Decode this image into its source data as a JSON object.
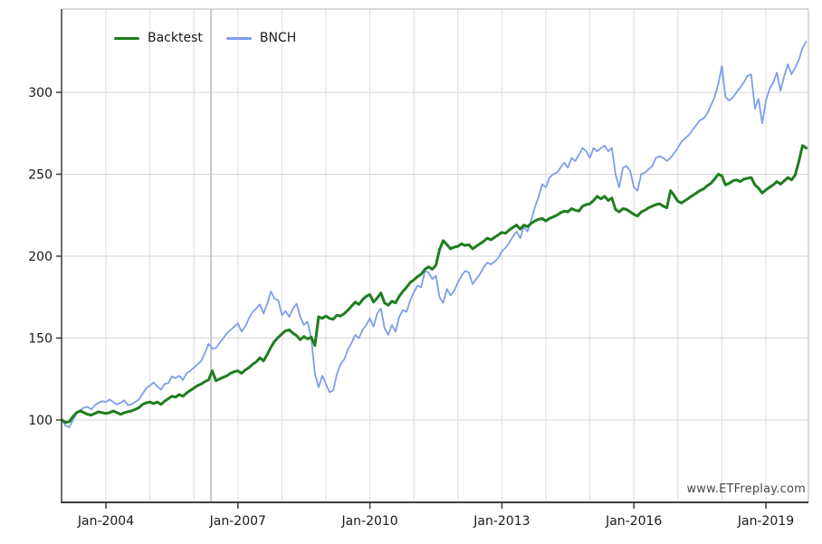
{
  "watermark": "www.ETFreplay.com",
  "legend": {
    "items": [
      {
        "label": "Backtest",
        "color": "#1e7d1e"
      },
      {
        "label": "BNCH",
        "color": "#7d9ee8"
      }
    ]
  },
  "colors": {
    "backtest_line": "#1e7d1e",
    "bnch_line": "#7d9ee8",
    "gridline": "#dcdcdc",
    "extra_gridline": "#c8c8c8",
    "axis": "#3d3d3d",
    "border": "#b4b4b4",
    "tick_text": "#1a1a1a"
  },
  "chart_data": {
    "type": "line",
    "title": "",
    "xlabel": "",
    "ylabel": "",
    "x_interval": "monthly",
    "x_start_year": 2003,
    "x_end_year_fraction": 2019.9167,
    "ylim": [
      50,
      351
    ],
    "y_ticks": [
      100,
      150,
      200,
      250,
      300
    ],
    "x_tick_years": [
      2004,
      2007,
      2010,
      2013,
      2016,
      2019
    ],
    "x_tick_labels": [
      "Jan-2004",
      "Jan-2007",
      "Jan-2010",
      "Jan-2013",
      "Jan-2016",
      "Jan-2019"
    ],
    "x_gridline_years": [
      2004,
      2005,
      2006,
      2007,
      2008,
      2009,
      2010,
      2011,
      2012,
      2013,
      2014,
      2015,
      2016,
      2017,
      2018,
      2019
    ],
    "extra_gridline_year": 2006.39,
    "grid": true,
    "legend_position": "top-left",
    "series": [
      {
        "name": "Backtest",
        "color": "#1e7d1e",
        "width": 3,
        "values": [
          100,
          98.5,
          99,
          102,
          104.5,
          105.5,
          104.5,
          103.5,
          103,
          104,
          105,
          104.5,
          104,
          104.5,
          105.5,
          104.5,
          103.5,
          104.5,
          105,
          105.5,
          106.5,
          107.5,
          109.5,
          110.5,
          111,
          110,
          111,
          109.5,
          111.5,
          113,
          114.5,
          114,
          115.5,
          114.5,
          116.5,
          118,
          119.5,
          121,
          122,
          123.5,
          124.5,
          130,
          124,
          125,
          126,
          127,
          128.5,
          129.5,
          130,
          128.5,
          130.5,
          132,
          134,
          135.5,
          138,
          136,
          140,
          144.5,
          148,
          150.5,
          152.5,
          154.5,
          155,
          153,
          151.5,
          149,
          151,
          149.5,
          150.5,
          145.5,
          163,
          162,
          163.5,
          162,
          161.5,
          164,
          163.5,
          165,
          167,
          169.5,
          172,
          170.5,
          173.5,
          175.5,
          176.5,
          172,
          174.5,
          177.5,
          171.5,
          170,
          172.5,
          171.5,
          175.5,
          178.5,
          181,
          184,
          185.5,
          187.5,
          189,
          192,
          193.5,
          192,
          194.5,
          204,
          209.5,
          207,
          204.5,
          205.5,
          206,
          207.5,
          206.5,
          207,
          204.5,
          206,
          207.5,
          209,
          211,
          210,
          211.5,
          213,
          214.5,
          214,
          216,
          217.5,
          219,
          216.5,
          219,
          218,
          220,
          221.5,
          222.5,
          223,
          221.5,
          223,
          224,
          225,
          226.5,
          227.5,
          227,
          229,
          228,
          227.5,
          230.5,
          231.5,
          232,
          234,
          236.5,
          235,
          236.5,
          234,
          235.5,
          228.5,
          227,
          229,
          228.5,
          227,
          225.5,
          224.5,
          227,
          228,
          229.5,
          230.5,
          231.5,
          232,
          230.5,
          229.5,
          240,
          237,
          233.5,
          232.5,
          234,
          235.5,
          237,
          238.5,
          240,
          241,
          243,
          244.5,
          247,
          250,
          249,
          243.5,
          244.5,
          246,
          246.5,
          245.5,
          247,
          247.5,
          248,
          243.5,
          241.5,
          238.5,
          240.5,
          242,
          243.5,
          245.5,
          244,
          246,
          248,
          246.5,
          249.5,
          258,
          267.5,
          266
        ]
      },
      {
        "name": "BNCH",
        "color": "#7d9ee8",
        "width": 1.8,
        "values": [
          100,
          96.5,
          95.5,
          100,
          104,
          106,
          107.5,
          108,
          106.5,
          109,
          110.5,
          111.5,
          111,
          112.5,
          111,
          109.5,
          110.5,
          112,
          109,
          109.5,
          111,
          112.5,
          116,
          119.5,
          121,
          123,
          120.5,
          118.5,
          122,
          122.5,
          126.5,
          125.5,
          127,
          124.5,
          128.5,
          130,
          132,
          134,
          136,
          141,
          146.5,
          143.5,
          144,
          147,
          150,
          153,
          155,
          157,
          159,
          154,
          157,
          162,
          166,
          168,
          170.5,
          165,
          171,
          178.5,
          174,
          173,
          164,
          166.5,
          163,
          168,
          171,
          163,
          158,
          160,
          150,
          128,
          120,
          127,
          122,
          117,
          118,
          128,
          134,
          137,
          143,
          147,
          152,
          150,
          155,
          158,
          162,
          157,
          165,
          168,
          156,
          152,
          158,
          154,
          163,
          167,
          166,
          173,
          178,
          182,
          181,
          191,
          190,
          186,
          188,
          175,
          171.5,
          180,
          176,
          179,
          184,
          188,
          191,
          190,
          183,
          186,
          189,
          193,
          196,
          195,
          196.5,
          199,
          203,
          205,
          208,
          212,
          215,
          211,
          218,
          215,
          222,
          230,
          236,
          244,
          242,
          248,
          250,
          251,
          254,
          257,
          254,
          260,
          258,
          262,
          266,
          264,
          260,
          266,
          264,
          266,
          267.5,
          264,
          266,
          250,
          242,
          254,
          255,
          252,
          242,
          240,
          250,
          251,
          253,
          255,
          260,
          261,
          260,
          258,
          260,
          263,
          266,
          270,
          272,
          274,
          277,
          280,
          283,
          284,
          287,
          292,
          297,
          305,
          316,
          297,
          295,
          297,
          300,
          303,
          306,
          310,
          311,
          290,
          296,
          281,
          295,
          302,
          306,
          312,
          301,
          310,
          317,
          311,
          315,
          320,
          327,
          331
        ]
      }
    ]
  }
}
